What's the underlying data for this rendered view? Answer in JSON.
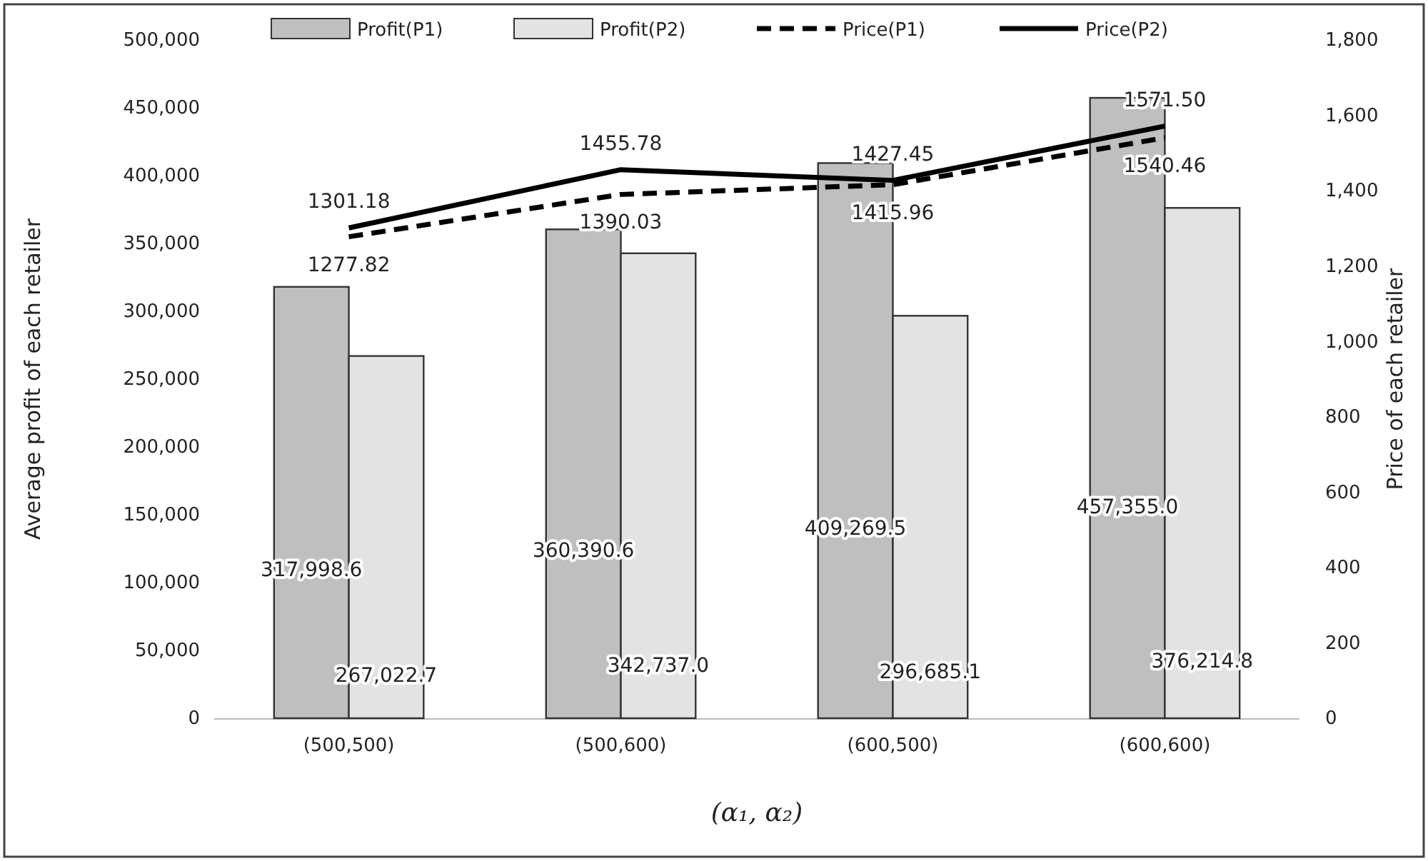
{
  "chart_data": {
    "type": "bar",
    "categories": [
      "(500,500)",
      "(500,600)",
      "(600,500)",
      "(600,600)"
    ],
    "xlabel": "(α₁, α₂)",
    "ylabel": "Average profit of each retailer",
    "y2label": "Price of each retailer",
    "ylim": [
      0,
      500000
    ],
    "yticks": [
      0,
      {
        "value": 50000,
        "label": "50,000"
      },
      {
        "value": 100000,
        "label": "100,000"
      },
      {
        "value": 150000,
        "label": "150,000"
      },
      {
        "value": 200000,
        "label": "200,000"
      },
      {
        "value": 250000,
        "label": "250,000"
      },
      {
        "value": 300000,
        "label": "300,000"
      },
      {
        "value": 350000,
        "label": "350,000"
      },
      {
        "value": 400000,
        "label": "400,000"
      },
      {
        "value": 450000,
        "label": "450,000"
      },
      {
        "value": 500000,
        "label": "500,000"
      }
    ],
    "y2lim": [
      0,
      1800
    ],
    "y2ticks": [
      0,
      200,
      400,
      600,
      800,
      {
        "value": 1000,
        "label": "1,000"
      },
      {
        "value": 1200,
        "label": "1,200"
      },
      {
        "value": 1400,
        "label": "1,400"
      },
      {
        "value": 1600,
        "label": "1,600"
      },
      {
        "value": 1800,
        "label": "1,800"
      }
    ],
    "legend": "top",
    "series": [
      {
        "name": "Profit(P1)",
        "color": "#bfbfbf",
        "values": [
          317998.6,
          360390.6,
          409269.5,
          457355.0
        ],
        "value_labels": [
          "317,998.6",
          "360,390.6",
          "409,269.5",
          "457,355.0"
        ]
      },
      {
        "name": "Profit(P2)",
        "color": "#e3e3e3",
        "values": [
          267022.7,
          342737.0,
          296685.1,
          376214.8
        ],
        "value_labels": [
          "267,022.7",
          "342,737.0",
          "296,685.1",
          "376,214.8"
        ]
      },
      {
        "name": "Price(P1)",
        "type": "line",
        "axis": "y2",
        "line_style": "dashed",
        "color": "#000000",
        "values": [
          1277.82,
          1390.03,
          1415.96,
          1540.46
        ],
        "value_labels": [
          "1277.82",
          "1390.03",
          "1415.96",
          "1540.46"
        ]
      },
      {
        "name": "Price(P2)",
        "type": "line",
        "axis": "y2",
        "line_style": "solid",
        "color": "#000000",
        "values": [
          1301.18,
          1455.78,
          1427.45,
          1571.5
        ],
        "value_labels": [
          "1301.18",
          "1455.78",
          "1427.45",
          "1571.50"
        ]
      }
    ]
  }
}
